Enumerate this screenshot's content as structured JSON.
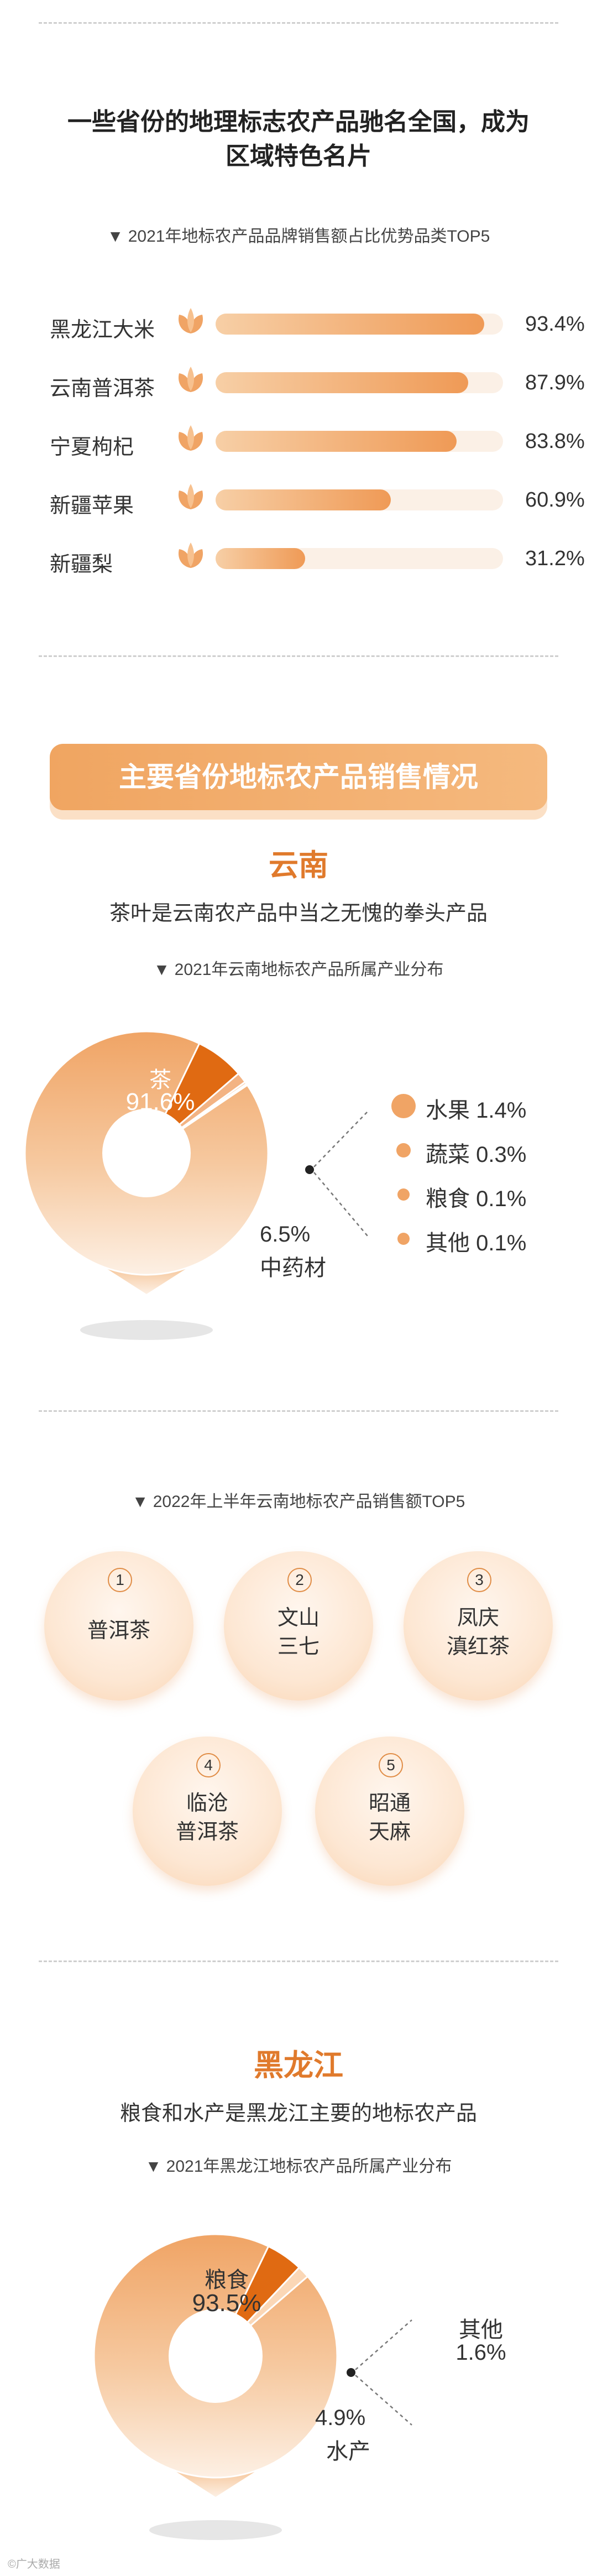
{
  "section1": {
    "title_line1": "一些省份的地理标志农产品驰名全国，成为",
    "title_line2": "区域特色名片",
    "chart_title": "▼ 2021年地标农产品品牌销售额占比优势品类TOP5"
  },
  "banner": {
    "text": "主要省份地标农产品销售情况"
  },
  "yunnan": {
    "region": "云南",
    "subtitle": "茶叶是云南农产品中当之无愧的拳头产品",
    "chart_title": "▼ 2021年云南地标农产品所属产业分布",
    "label_main_name": "茶",
    "label_main_value": "91.6%",
    "label_second_value": "6.5%",
    "label_second_name": "中药材",
    "legend": [
      {
        "text": "水果 1.4%"
      },
      {
        "text": "蔬菜 0.3%"
      },
      {
        "text": "粮食 0.1%"
      },
      {
        "text": "其他 0.1%"
      }
    ],
    "top5_title": "▼ 2022年上半年云南地标农产品销售额TOP5",
    "top5": [
      {
        "rank": "1",
        "line1": "普洱茶",
        "line2": ""
      },
      {
        "rank": "2",
        "line1": "文山",
        "line2": "三七"
      },
      {
        "rank": "3",
        "line1": "凤庆",
        "line2": "滇红茶"
      },
      {
        "rank": "4",
        "line1": "临沧",
        "line2": "普洱茶"
      },
      {
        "rank": "5",
        "line1": "昭通",
        "line2": "天麻"
      }
    ]
  },
  "heilongjiang": {
    "region": "黑龙江",
    "subtitle": "粮食和水产是黑龙江主要的地标农产品",
    "chart_title": "▼ 2021年黑龙江地标农产品所属产业分布",
    "label_main_name": "粮食",
    "label_main_value": "93.5%",
    "label_second_value": "4.9%",
    "label_second_name": "水产",
    "label_other_name": "其他",
    "label_other_value": "1.6%"
  },
  "footer": {
    "logo_text": "©广大数据"
  },
  "chart_data": [
    {
      "type": "bar",
      "title": "2021年地标农产品品牌销售额占比优势品类TOP5",
      "categories": [
        "黑龙江大米",
        "云南普洱茶",
        "宁夏枸杞",
        "新疆苹果",
        "新疆梨"
      ],
      "values": [
        93.4,
        87.9,
        83.8,
        60.9,
        31.2
      ],
      "value_labels": [
        "93.4%",
        "87.9%",
        "83.8%",
        "60.9%",
        "31.2%"
      ],
      "xlim": [
        0,
        100
      ]
    },
    {
      "type": "pie",
      "title": "2021年云南地标农产品所属产业分布",
      "categories": [
        "茶",
        "中药材",
        "水果",
        "蔬菜",
        "粮食",
        "其他"
      ],
      "values": [
        91.6,
        6.5,
        1.4,
        0.3,
        0.1,
        0.1
      ]
    },
    {
      "type": "pie",
      "title": "2021年黑龙江地标农产品所属产业分布",
      "categories": [
        "粮食",
        "水产",
        "其他"
      ],
      "values": [
        93.5,
        4.9,
        1.6
      ]
    }
  ],
  "colors": {
    "accent": "#e07a2c",
    "bar_light": "#f7cfa6",
    "bar_dark": "#ef9a56",
    "track": "#fbf0e6",
    "slice_dark": "#e06a12",
    "slice_light": "#fbd7b6"
  }
}
